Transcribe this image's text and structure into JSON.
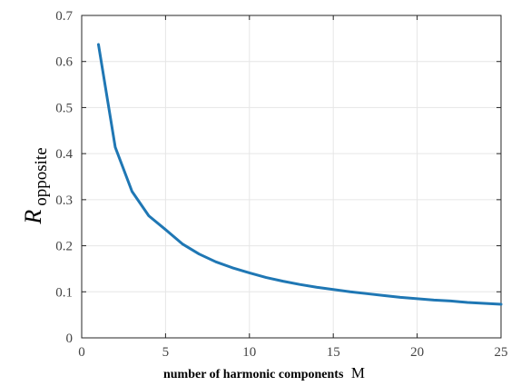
{
  "chart_data": {
    "type": "line",
    "title": "",
    "xlabel": "number of harmonic components",
    "xlabel_symbol": "M",
    "ylabel": "R",
    "ylabel_subscript": "opposite",
    "xlim": [
      0,
      25
    ],
    "ylim": [
      0,
      0.7
    ],
    "xticks": [
      0,
      5,
      10,
      15,
      20,
      25
    ],
    "yticks": [
      0,
      0.1,
      0.2,
      0.3,
      0.4,
      0.5,
      0.6,
      0.7
    ],
    "xtick_labels": [
      "0",
      "5",
      "10",
      "15",
      "20",
      "25"
    ],
    "ytick_labels": [
      "0",
      "0.1",
      "0.2",
      "0.3",
      "0.4",
      "0.5",
      "0.6",
      "0.7"
    ],
    "grid": true,
    "legend": "none",
    "series": [
      {
        "color": "#1f77b4",
        "x": [
          1,
          2,
          3,
          4,
          5,
          6,
          7,
          8,
          9,
          10,
          11,
          12,
          13,
          14,
          15,
          16,
          17,
          18,
          19,
          20,
          21,
          22,
          23,
          24,
          25
        ],
        "y": [
          0.637,
          0.414,
          0.318,
          0.265,
          0.235,
          0.204,
          0.182,
          0.165,
          0.152,
          0.141,
          0.131,
          0.123,
          0.116,
          0.11,
          0.105,
          0.1,
          0.096,
          0.092,
          0.088,
          0.085,
          0.082,
          0.08,
          0.077,
          0.075,
          0.073
        ]
      }
    ]
  }
}
